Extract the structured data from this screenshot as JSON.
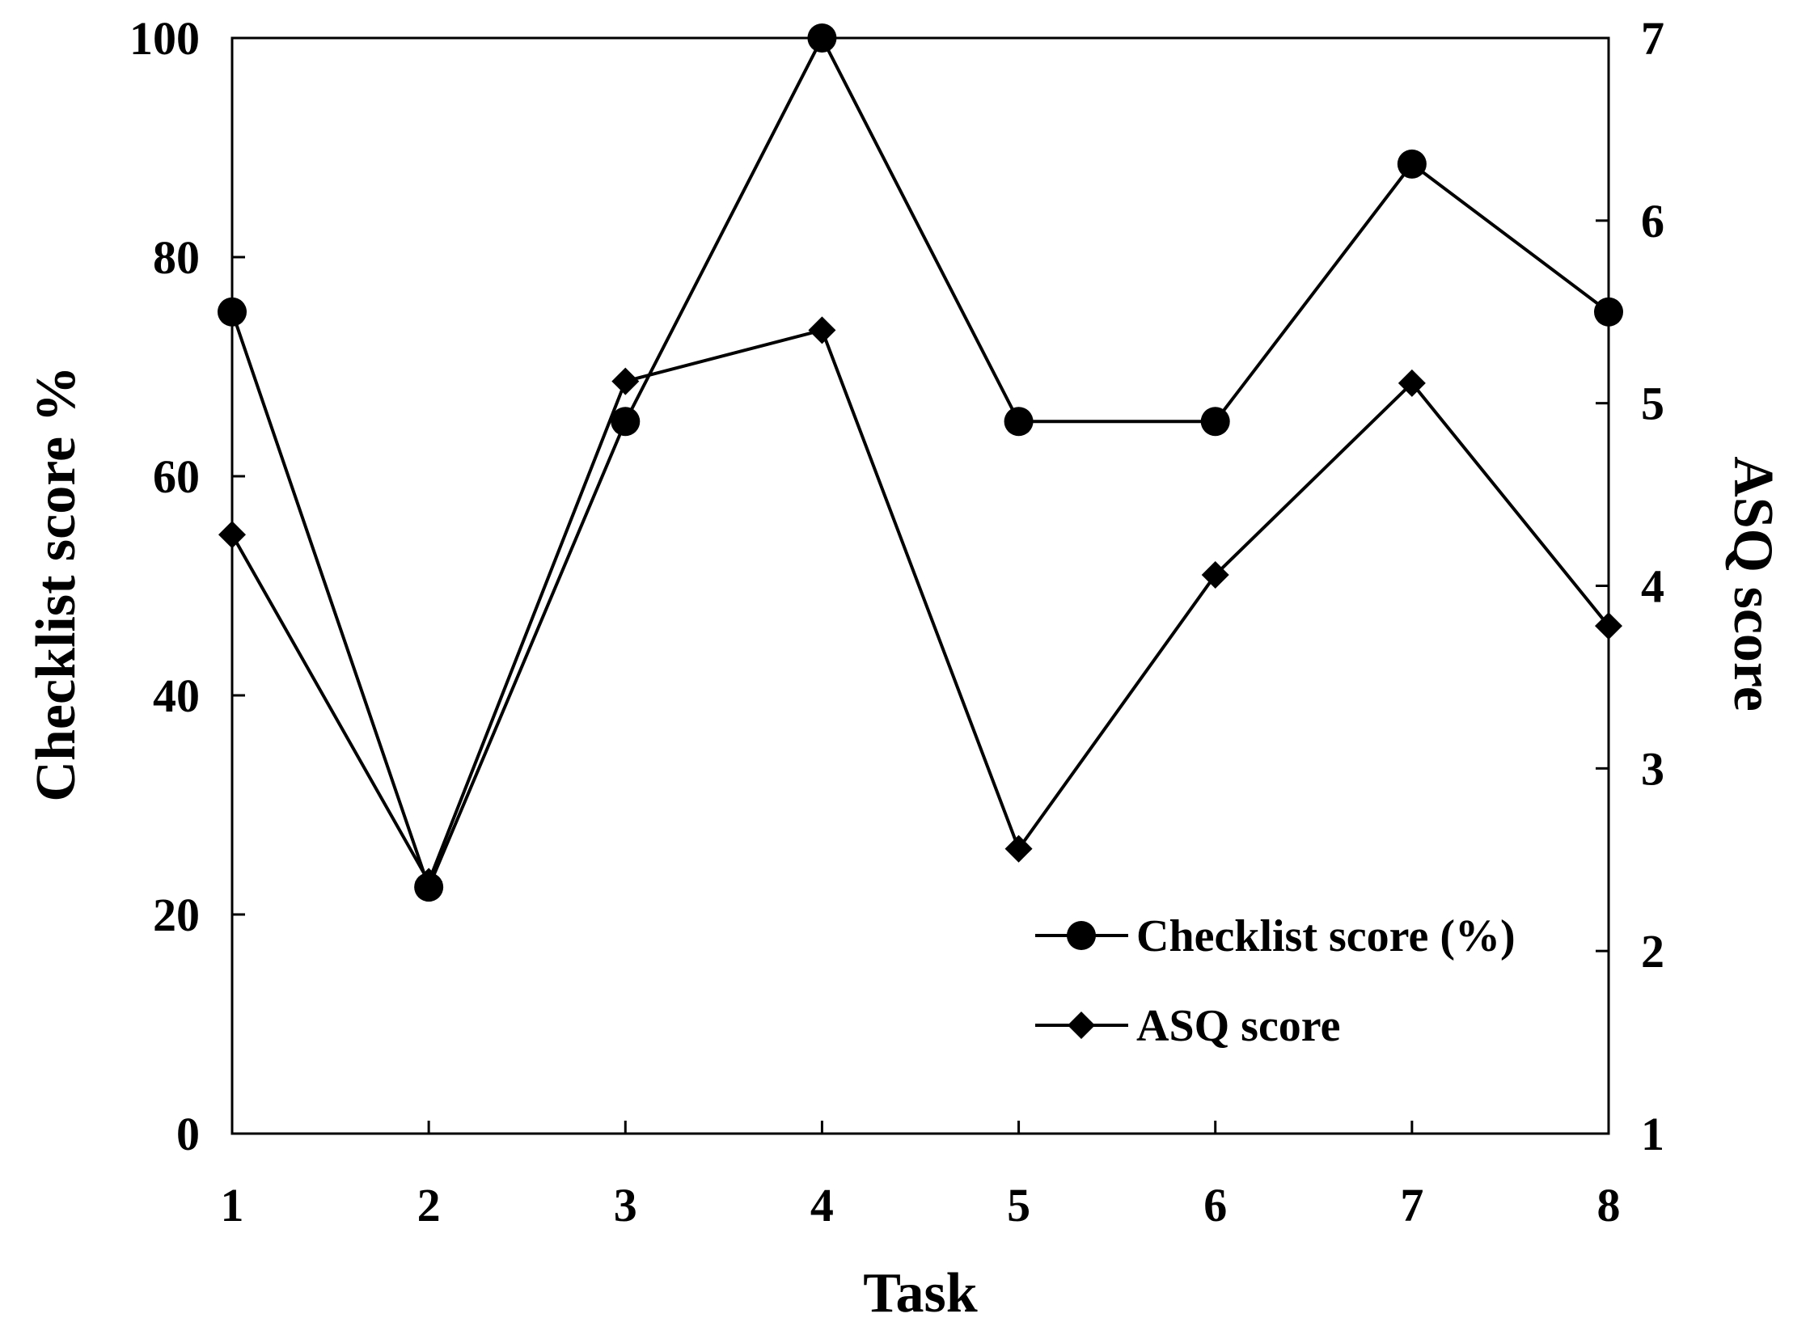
{
  "chart_data": {
    "type": "line",
    "xlabel": "Task",
    "ylabel": "Checklist score %",
    "y2label": "ASQ score",
    "x": [
      1,
      2,
      3,
      4,
      5,
      6,
      7,
      8
    ],
    "xlim": [
      1,
      8
    ],
    "ylim": [
      0,
      100
    ],
    "y2lim": [
      1,
      7
    ],
    "xticks": [
      "1",
      "2",
      "3",
      "4",
      "5",
      "6",
      "7",
      "8"
    ],
    "yticks": [
      "0",
      "20",
      "40",
      "60",
      "80",
      "100"
    ],
    "y2ticks": [
      "1",
      "2",
      "3",
      "4",
      "5",
      "6",
      "7"
    ],
    "grid": false,
    "legend_position": "bottom-right",
    "series": [
      {
        "name": "Checklist score (%)",
        "axis": "left",
        "marker": "circle",
        "color": "#000000",
        "values": [
          75,
          22.5,
          65,
          100,
          65,
          65,
          88.5,
          75
        ]
      },
      {
        "name": "ASQ score",
        "axis": "right",
        "marker": "diamond",
        "color": "#000000",
        "values": [
          4.28,
          2.38,
          5.12,
          5.4,
          2.56,
          4.06,
          5.11,
          3.78
        ]
      }
    ]
  }
}
